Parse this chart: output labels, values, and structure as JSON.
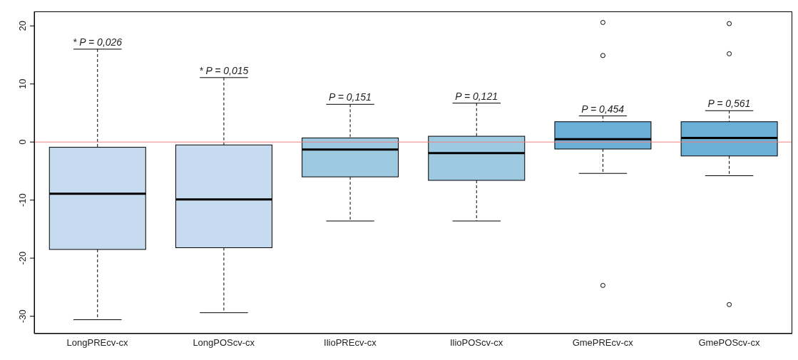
{
  "chart_data": {
    "type": "box",
    "categories": [
      "LongPREcv-cx",
      "LongPOScv-cx",
      "IlioPREcv-cx",
      "IlioPOScv-cx",
      "GmePREcv-cx",
      "GmePOScv-cx"
    ],
    "colors": [
      "#c6dbef",
      "#c6dbef",
      "#9ecae1",
      "#9ecae1",
      "#6baed6",
      "#6baed6"
    ],
    "boxes": [
      {
        "low": -30.6,
        "q1": -18.5,
        "median": -8.9,
        "q3": -0.9,
        "high": 16.0
      },
      {
        "low": -29.4,
        "q1": -18.2,
        "median": -9.9,
        "q3": -0.5,
        "high": 11.1
      },
      {
        "low": -13.6,
        "q1": -6.0,
        "median": -1.3,
        "q3": 0.7,
        "high": 6.5
      },
      {
        "low": -13.6,
        "q1": -6.6,
        "median": -1.9,
        "q3": 1.0,
        "high": 6.7
      },
      {
        "low": -5.4,
        "q1": -1.2,
        "median": 0.5,
        "q3": 3.5,
        "high": 4.5,
        "outliers": [
          20.6,
          14.9,
          -24.7
        ]
      },
      {
        "low": -5.8,
        "q1": -2.4,
        "median": 0.7,
        "q3": 3.5,
        "high": 5.4,
        "outliers": [
          20.4,
          15.2,
          -28.0
        ]
      }
    ],
    "ylim": [
      -33,
      22.5
    ],
    "yticks": [
      -30,
      -20,
      -10,
      0,
      10,
      20
    ],
    "ref_lines": [
      {
        "axis": "y",
        "value": 0,
        "color": "#f08080"
      }
    ],
    "annotations": [
      {
        "text": "* P = 0,026",
        "x": "LongPREcv-cx",
        "y": 16.0
      },
      {
        "text": "* P = 0,015",
        "x": "LongPOScv-cx",
        "y": 11.1
      },
      {
        "text": "P = 0,151",
        "x": "IlioPREcv-cx",
        "y": 6.5
      },
      {
        "text": "P = 0,121",
        "x": "IlioPOScv-cx",
        "y": 6.7
      },
      {
        "text": "P = 0,454",
        "x": "GmePREcv-cx",
        "y": 4.5
      },
      {
        "text": "P = 0,561",
        "x": "GmePOScv-cx",
        "y": 5.4
      }
    ]
  }
}
